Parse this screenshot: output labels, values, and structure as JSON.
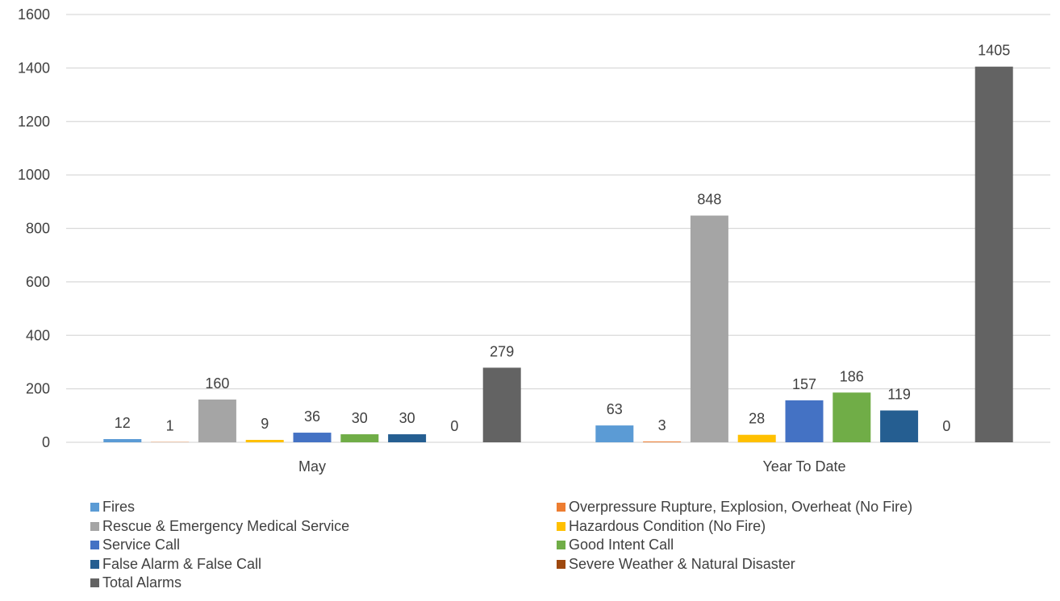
{
  "chart_data": {
    "type": "bar",
    "categories": [
      "May",
      "Year To Date"
    ],
    "series": [
      {
        "name": "Fires",
        "values": [
          12,
          63
        ],
        "color": "#5B9BD5"
      },
      {
        "name": "Overpressure Rupture, Explosion, Overheat (No Fire)",
        "values": [
          1,
          3
        ],
        "color": "#ED7D31"
      },
      {
        "name": "Rescue & Emergency Medical Service",
        "values": [
          160,
          848
        ],
        "color": "#A5A5A5"
      },
      {
        "name": "Hazardous Condition (No Fire)",
        "values": [
          9,
          28
        ],
        "color": "#FFC000"
      },
      {
        "name": "Service Call",
        "values": [
          36,
          157
        ],
        "color": "#4472C4"
      },
      {
        "name": "Good Intent Call",
        "values": [
          30,
          186
        ],
        "color": "#70AD47"
      },
      {
        "name": "False Alarm & False Call",
        "values": [
          30,
          119
        ],
        "color": "#255E91"
      },
      {
        "name": "Severe Weather & Natural Disaster",
        "values": [
          0,
          0
        ],
        "color": "#9E480E"
      },
      {
        "name": "Total Alarms",
        "values": [
          279,
          1405
        ],
        "color": "#636363"
      }
    ],
    "ylim": [
      0,
      1600
    ],
    "yticks": [
      "0",
      "200",
      "400",
      "600",
      "800",
      "1000",
      "1200",
      "1400",
      "1600"
    ],
    "grid": true,
    "legend_position": "bottom"
  }
}
